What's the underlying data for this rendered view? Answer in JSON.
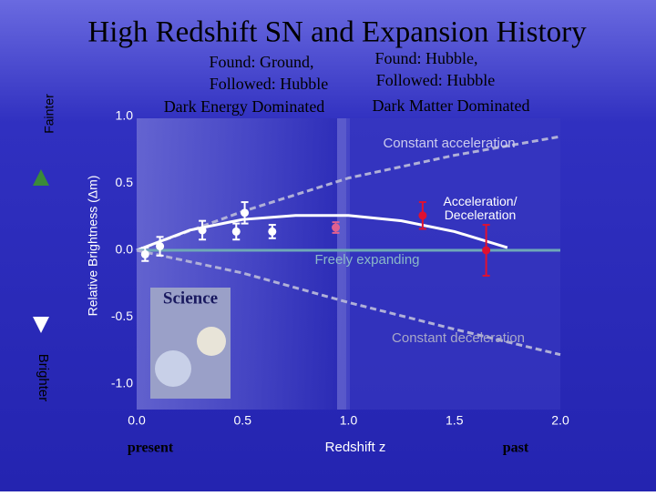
{
  "chart_data": {
    "type": "scatter",
    "title": "High Redshift SN and Expansion History",
    "xlabel": "Redshift z",
    "ylabel": "Relative Brightness (Δm)",
    "xlim": [
      0,
      2
    ],
    "ylim": [
      -1.0,
      1.0
    ],
    "xticks": [
      {
        "value": 0,
        "label": "0.0"
      },
      {
        "value": 0.5,
        "label": "0.5"
      },
      {
        "value": 1.0,
        "label": "1.0"
      },
      {
        "value": 1.5,
        "label": "1.5"
      },
      {
        "value": 2.0,
        "label": "2.0"
      }
    ],
    "yticks": [
      {
        "value": 1.0,
        "label": "1.0"
      },
      {
        "value": 0.5,
        "label": "0.5"
      },
      {
        "value": 0,
        "label": "0.0"
      },
      {
        "value": -0.5,
        "label": "-0.5"
      },
      {
        "value": -1.0,
        "label": "-1.0"
      }
    ],
    "curves": [
      {
        "name": "Constant acceleration",
        "color": "#b0b0d8",
        "dash": true,
        "x": [
          0,
          0.5,
          1.0,
          1.5,
          2.0
        ],
        "values": [
          0,
          0.29,
          0.54,
          0.71,
          0.85
        ]
      },
      {
        "name": "Acceleration/ Deceleration",
        "color": "#ffffff",
        "dash": false,
        "x": [
          0,
          0.25,
          0.5,
          0.75,
          1.0,
          1.25,
          1.5,
          1.75
        ],
        "values": [
          0,
          0.15,
          0.23,
          0.26,
          0.26,
          0.22,
          0.14,
          0.02
        ]
      },
      {
        "name": "Freely expanding",
        "color": "#6fa8b8",
        "dash": false,
        "x": [
          0,
          2.0
        ],
        "values": [
          0,
          0
        ]
      },
      {
        "name": "Constant deceleration",
        "color": "#b0b0d8",
        "dash": true,
        "x": [
          0,
          0.5,
          1.0,
          1.5,
          2.0
        ],
        "values": [
          0,
          -0.17,
          -0.39,
          -0.59,
          -0.78
        ]
      }
    ],
    "series": [
      {
        "color": "#ffffff",
        "x": [
          0.04,
          0.11,
          0.31,
          0.47,
          0.51,
          0.64
        ],
        "values": [
          -0.03,
          0.03,
          0.15,
          0.14,
          0.28,
          0.14
        ],
        "errors": [
          0.05,
          0.07,
          0.07,
          0.06,
          0.08,
          0.05
        ]
      },
      {
        "color": "#e06090",
        "x": [
          0.94
        ],
        "values": [
          0.17
        ],
        "errors": [
          0.04
        ]
      },
      {
        "color": "#e01030",
        "x": [
          1.35,
          1.65
        ],
        "values": [
          0.26,
          0.0
        ],
        "errors": [
          0.1,
          0.19
        ]
      }
    ],
    "annotations": [
      "Found: Ground,",
      "Followed: Hubble",
      "Dark Energy Dominated",
      "Found: Hubble,",
      "Followed: Hubble",
      "Dark Matter Dominated",
      "present",
      "past",
      "Fainter",
      "Brighter",
      "Science"
    ]
  }
}
